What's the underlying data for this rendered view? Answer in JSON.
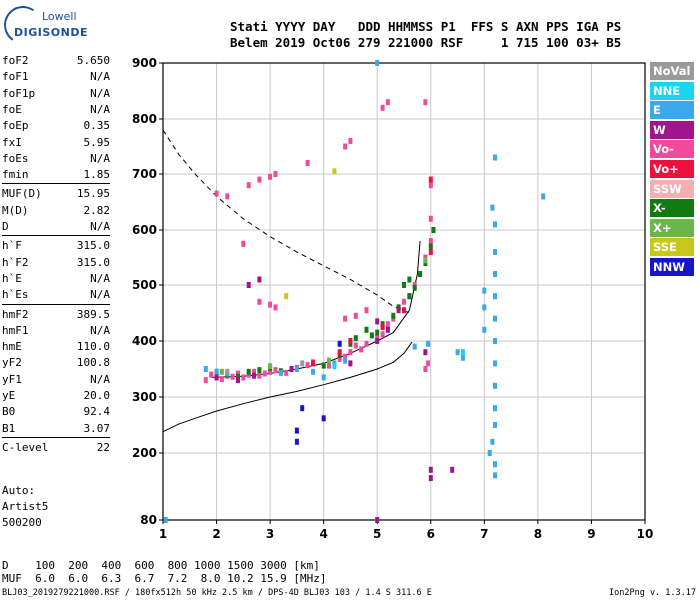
{
  "logo": {
    "line1": "Lowell",
    "line2": "DIGISONDE"
  },
  "header": {
    "row1": "Stati YYYY DAY   DDD HHMMSS P1  FFS S AXN PPS IGA PS",
    "row2": "Belem 2019 Oct06 279 221000 RSF     1 715 100 03+ B5"
  },
  "params": [
    {
      "name": "foF2",
      "value": "5.650"
    },
    {
      "name": "foF1",
      "value": "N/A"
    },
    {
      "name": "foF1p",
      "value": "N/A"
    },
    {
      "name": "foE",
      "value": "N/A"
    },
    {
      "name": "foEp",
      "value": "0.35"
    },
    {
      "name": "fxI",
      "value": "5.95"
    },
    {
      "name": "foEs",
      "value": "N/A"
    },
    {
      "name": "fmin",
      "value": "1.85"
    },
    {
      "name": "MUF(D)",
      "value": "15.95"
    },
    {
      "name": "M(D)",
      "value": "2.82"
    },
    {
      "name": "D",
      "value": "N/A"
    },
    {
      "name": "h`F",
      "value": "315.0"
    },
    {
      "name": "h`F2",
      "value": "315.0"
    },
    {
      "name": "h`E",
      "value": "N/A"
    },
    {
      "name": "h`Es",
      "value": "N/A"
    },
    {
      "name": "hmF2",
      "value": "389.5"
    },
    {
      "name": "hmF1",
      "value": "N/A"
    },
    {
      "name": "hmE",
      "value": "110.0"
    },
    {
      "name": "yF2",
      "value": "100.8"
    },
    {
      "name": "yF1",
      "value": "N/A"
    },
    {
      "name": "yE",
      "value": "20.0"
    },
    {
      "name": "B0",
      "value": "92.4"
    },
    {
      "name": "B1",
      "value": "3.07"
    },
    {
      "name": "C-level",
      "value": "22"
    }
  ],
  "auto": {
    "line1": "Auto:",
    "line2": "Artist5",
    "line3": "500200"
  },
  "legend": [
    {
      "label": "NoVal",
      "color": "#9a9a9a"
    },
    {
      "label": "NNE",
      "color": "#19d6f0"
    },
    {
      "label": "E",
      "color": "#3aa8ea"
    },
    {
      "label": "W",
      "color": "#a0148c"
    },
    {
      "label": "Vo-",
      "color": "#f04a9e"
    },
    {
      "label": "Vo+",
      "color": "#ee103c"
    },
    {
      "label": "SSW",
      "color": "#f4b0b0"
    },
    {
      "label": "X-",
      "color": "#127a12"
    },
    {
      "label": "X+",
      "color": "#6ab64a"
    },
    {
      "label": "SSE",
      "color": "#c8c81a"
    },
    {
      "label": "NNW",
      "color": "#1616c8"
    }
  ],
  "dmuf": {
    "row1": "D    100  200  400  600  800 1000 1500 3000 [km]",
    "row2": "MUF  6.0  6.0  6.3  6.7  7.2  8.0 10.2 15.9 [MHz]"
  },
  "footer": {
    "left": "BLJ03_2019279221000.RSF / 180fx512h 50 kHz 2.5 km / DPS-4D BLJ03 103 / 1.4 S 311.6 E",
    "right": "Ion2Png v. 1.3.17"
  },
  "chart_data": {
    "type": "scatter",
    "xlim": [
      1,
      10
    ],
    "ylim": [
      80,
      900
    ],
    "xticks": [
      "1",
      "2",
      "3",
      "4",
      "5",
      "6",
      "7",
      "8",
      "9",
      "10"
    ],
    "yticks": [
      "80",
      "200",
      "300",
      "400",
      "500",
      "600",
      "700",
      "800",
      "900"
    ],
    "ytick_values": [
      80,
      200,
      300,
      400,
      500,
      600,
      700,
      800,
      900
    ],
    "grid": true,
    "xlabel": "",
    "ylabel": "",
    "legend_position": "right",
    "series": [
      {
        "color_key": "Vo-",
        "points": [
          [
            1.8,
            330
          ],
          [
            1.9,
            340
          ],
          [
            2.0,
            335
          ],
          [
            2.1,
            332
          ],
          [
            2.2,
            338
          ],
          [
            2.3,
            336
          ],
          [
            2.4,
            342
          ],
          [
            2.5,
            335
          ],
          [
            2.6,
            340
          ],
          [
            2.7,
            345
          ],
          [
            2.8,
            338
          ],
          [
            2.9,
            342
          ],
          [
            3.0,
            345
          ],
          [
            3.1,
            348
          ],
          [
            3.3,
            343
          ],
          [
            3.5,
            352
          ],
          [
            3.7,
            357
          ],
          [
            3.8,
            362
          ],
          [
            4.1,
            356
          ],
          [
            4.3,
            368
          ],
          [
            4.4,
            372
          ],
          [
            4.5,
            380
          ],
          [
            4.6,
            392
          ],
          [
            4.7,
            385
          ],
          [
            4.8,
            395
          ],
          [
            5.0,
            405
          ],
          [
            5.1,
            412
          ],
          [
            5.2,
            430
          ],
          [
            5.3,
            440
          ],
          [
            5.4,
            460
          ],
          [
            5.5,
            470
          ],
          [
            5.6,
            480
          ],
          [
            5.7,
            500
          ],
          [
            5.8,
            520
          ],
          [
            5.9,
            550
          ],
          [
            6.0,
            580
          ],
          [
            6.0,
            620
          ],
          [
            6.0,
            680
          ],
          [
            2.0,
            665
          ],
          [
            2.2,
            660
          ],
          [
            2.6,
            680
          ],
          [
            2.8,
            690
          ],
          [
            3.0,
            695
          ],
          [
            3.1,
            700
          ],
          [
            3.7,
            720
          ],
          [
            4.4,
            750
          ],
          [
            4.5,
            760
          ],
          [
            5.1,
            820
          ],
          [
            5.2,
            830
          ],
          [
            5.9,
            830
          ],
          [
            2.5,
            575
          ],
          [
            2.8,
            470
          ],
          [
            3.0,
            465
          ],
          [
            3.1,
            460
          ],
          [
            4.4,
            440
          ],
          [
            4.6,
            445
          ],
          [
            4.8,
            455
          ],
          [
            5.9,
            350
          ],
          [
            5.95,
            360
          ]
        ]
      },
      {
        "color_key": "X-",
        "points": [
          [
            2.0,
            345
          ],
          [
            2.2,
            340
          ],
          [
            2.4,
            336
          ],
          [
            2.6,
            345
          ],
          [
            2.8,
            348
          ],
          [
            3.0,
            352
          ],
          [
            3.2,
            346
          ],
          [
            4.0,
            356
          ],
          [
            4.3,
            375
          ],
          [
            4.5,
            395
          ],
          [
            4.6,
            405
          ],
          [
            4.8,
            420
          ],
          [
            4.9,
            410
          ],
          [
            5.0,
            415
          ],
          [
            5.1,
            430
          ],
          [
            5.3,
            445
          ],
          [
            5.4,
            460
          ],
          [
            5.6,
            480
          ],
          [
            5.7,
            495
          ],
          [
            5.8,
            520
          ],
          [
            5.9,
            540
          ],
          [
            6.0,
            570
          ],
          [
            6.05,
            600
          ],
          [
            5.5,
            500
          ],
          [
            5.6,
            510
          ]
        ]
      },
      {
        "color_key": "E",
        "points": [
          [
            1.8,
            350
          ],
          [
            2.0,
            345
          ],
          [
            2.2,
            342
          ],
          [
            3.2,
            343
          ],
          [
            3.5,
            350
          ],
          [
            3.8,
            345
          ],
          [
            4.0,
            335
          ],
          [
            4.2,
            360
          ],
          [
            4.4,
            365
          ],
          [
            5.7,
            390
          ],
          [
            5.95,
            395
          ],
          [
            6.5,
            380
          ],
          [
            6.6,
            370
          ],
          [
            7.0,
            420
          ],
          [
            7.0,
            460
          ],
          [
            7.0,
            490
          ],
          [
            7.15,
            640
          ],
          [
            7.2,
            610
          ],
          [
            7.2,
            560
          ],
          [
            7.2,
            520
          ],
          [
            7.2,
            480
          ],
          [
            7.2,
            440
          ],
          [
            7.2,
            400
          ],
          [
            7.2,
            360
          ],
          [
            7.2,
            320
          ],
          [
            7.2,
            280
          ],
          [
            7.2,
            250
          ],
          [
            7.15,
            220
          ],
          [
            7.1,
            200
          ],
          [
            7.2,
            180
          ],
          [
            7.2,
            160
          ],
          [
            7.2,
            730
          ],
          [
            8.1,
            660
          ],
          [
            5.0,
            900
          ],
          [
            1.05,
            80
          ]
        ]
      },
      {
        "color_key": "W",
        "points": [
          [
            2.0,
            335
          ],
          [
            2.4,
            330
          ],
          [
            2.7,
            338
          ],
          [
            3.4,
            350
          ],
          [
            4.5,
            360
          ],
          [
            5.0,
            400
          ],
          [
            5.2,
            420
          ],
          [
            2.8,
            510
          ],
          [
            2.6,
            500
          ],
          [
            5.0,
            435
          ],
          [
            5.4,
            455
          ],
          [
            5.9,
            380
          ],
          [
            6.4,
            170
          ],
          [
            6.0,
            170
          ],
          [
            6.0,
            155
          ],
          [
            5.0,
            80
          ]
        ]
      },
      {
        "color_key": "Vo+",
        "points": [
          [
            3.8,
            360
          ],
          [
            4.3,
            380
          ],
          [
            4.5,
            400
          ],
          [
            5.1,
            425
          ],
          [
            5.5,
            455
          ],
          [
            6.0,
            560
          ],
          [
            6.0,
            690
          ]
        ]
      },
      {
        "color_key": "NNW",
        "points": [
          [
            3.5,
            240
          ],
          [
            3.5,
            220
          ],
          [
            3.6,
            280
          ],
          [
            4.0,
            262
          ],
          [
            4.3,
            395
          ]
        ]
      },
      {
        "color_key": "X+",
        "points": [
          [
            2.1,
            345
          ],
          [
            3.0,
            355
          ],
          [
            4.1,
            365
          ],
          [
            5.9,
            545
          ]
        ]
      },
      {
        "color_key": "NNE",
        "points": [
          [
            4.2,
            355
          ],
          [
            6.6,
            380
          ]
        ]
      },
      {
        "color_key": "SSE",
        "points": [
          [
            3.3,
            480
          ],
          [
            4.2,
            705
          ]
        ]
      },
      {
        "color_key": "NoVal",
        "points": [
          [
            2.2,
            345
          ],
          [
            3.6,
            360
          ]
        ]
      }
    ],
    "curves": [
      {
        "style": "dashed",
        "points": [
          [
            1.0,
            780
          ],
          [
            1.3,
            735
          ],
          [
            1.6,
            700
          ],
          [
            2.0,
            660
          ],
          [
            2.5,
            620
          ],
          [
            3.0,
            588
          ],
          [
            3.5,
            560
          ],
          [
            4.0,
            535
          ],
          [
            4.5,
            510
          ],
          [
            5.0,
            482
          ],
          [
            5.3,
            462
          ],
          [
            5.6,
            450
          ]
        ]
      },
      {
        "style": "solid",
        "points": [
          [
            1.0,
            238
          ],
          [
            1.3,
            252
          ],
          [
            1.6,
            262
          ],
          [
            2.0,
            275
          ],
          [
            2.5,
            288
          ],
          [
            3.0,
            300
          ],
          [
            3.5,
            310
          ],
          [
            4.0,
            322
          ],
          [
            4.5,
            335
          ],
          [
            5.0,
            350
          ],
          [
            5.3,
            362
          ],
          [
            5.5,
            378
          ],
          [
            5.65,
            398
          ]
        ]
      },
      {
        "style": "solid",
        "points": [
          [
            1.9,
            335
          ],
          [
            2.5,
            337
          ],
          [
            3.0,
            342
          ],
          [
            3.5,
            350
          ],
          [
            4.0,
            360
          ],
          [
            4.5,
            378
          ],
          [
            5.0,
            400
          ],
          [
            5.3,
            415
          ],
          [
            5.6,
            455
          ],
          [
            5.75,
            520
          ],
          [
            5.8,
            580
          ]
        ]
      }
    ]
  }
}
